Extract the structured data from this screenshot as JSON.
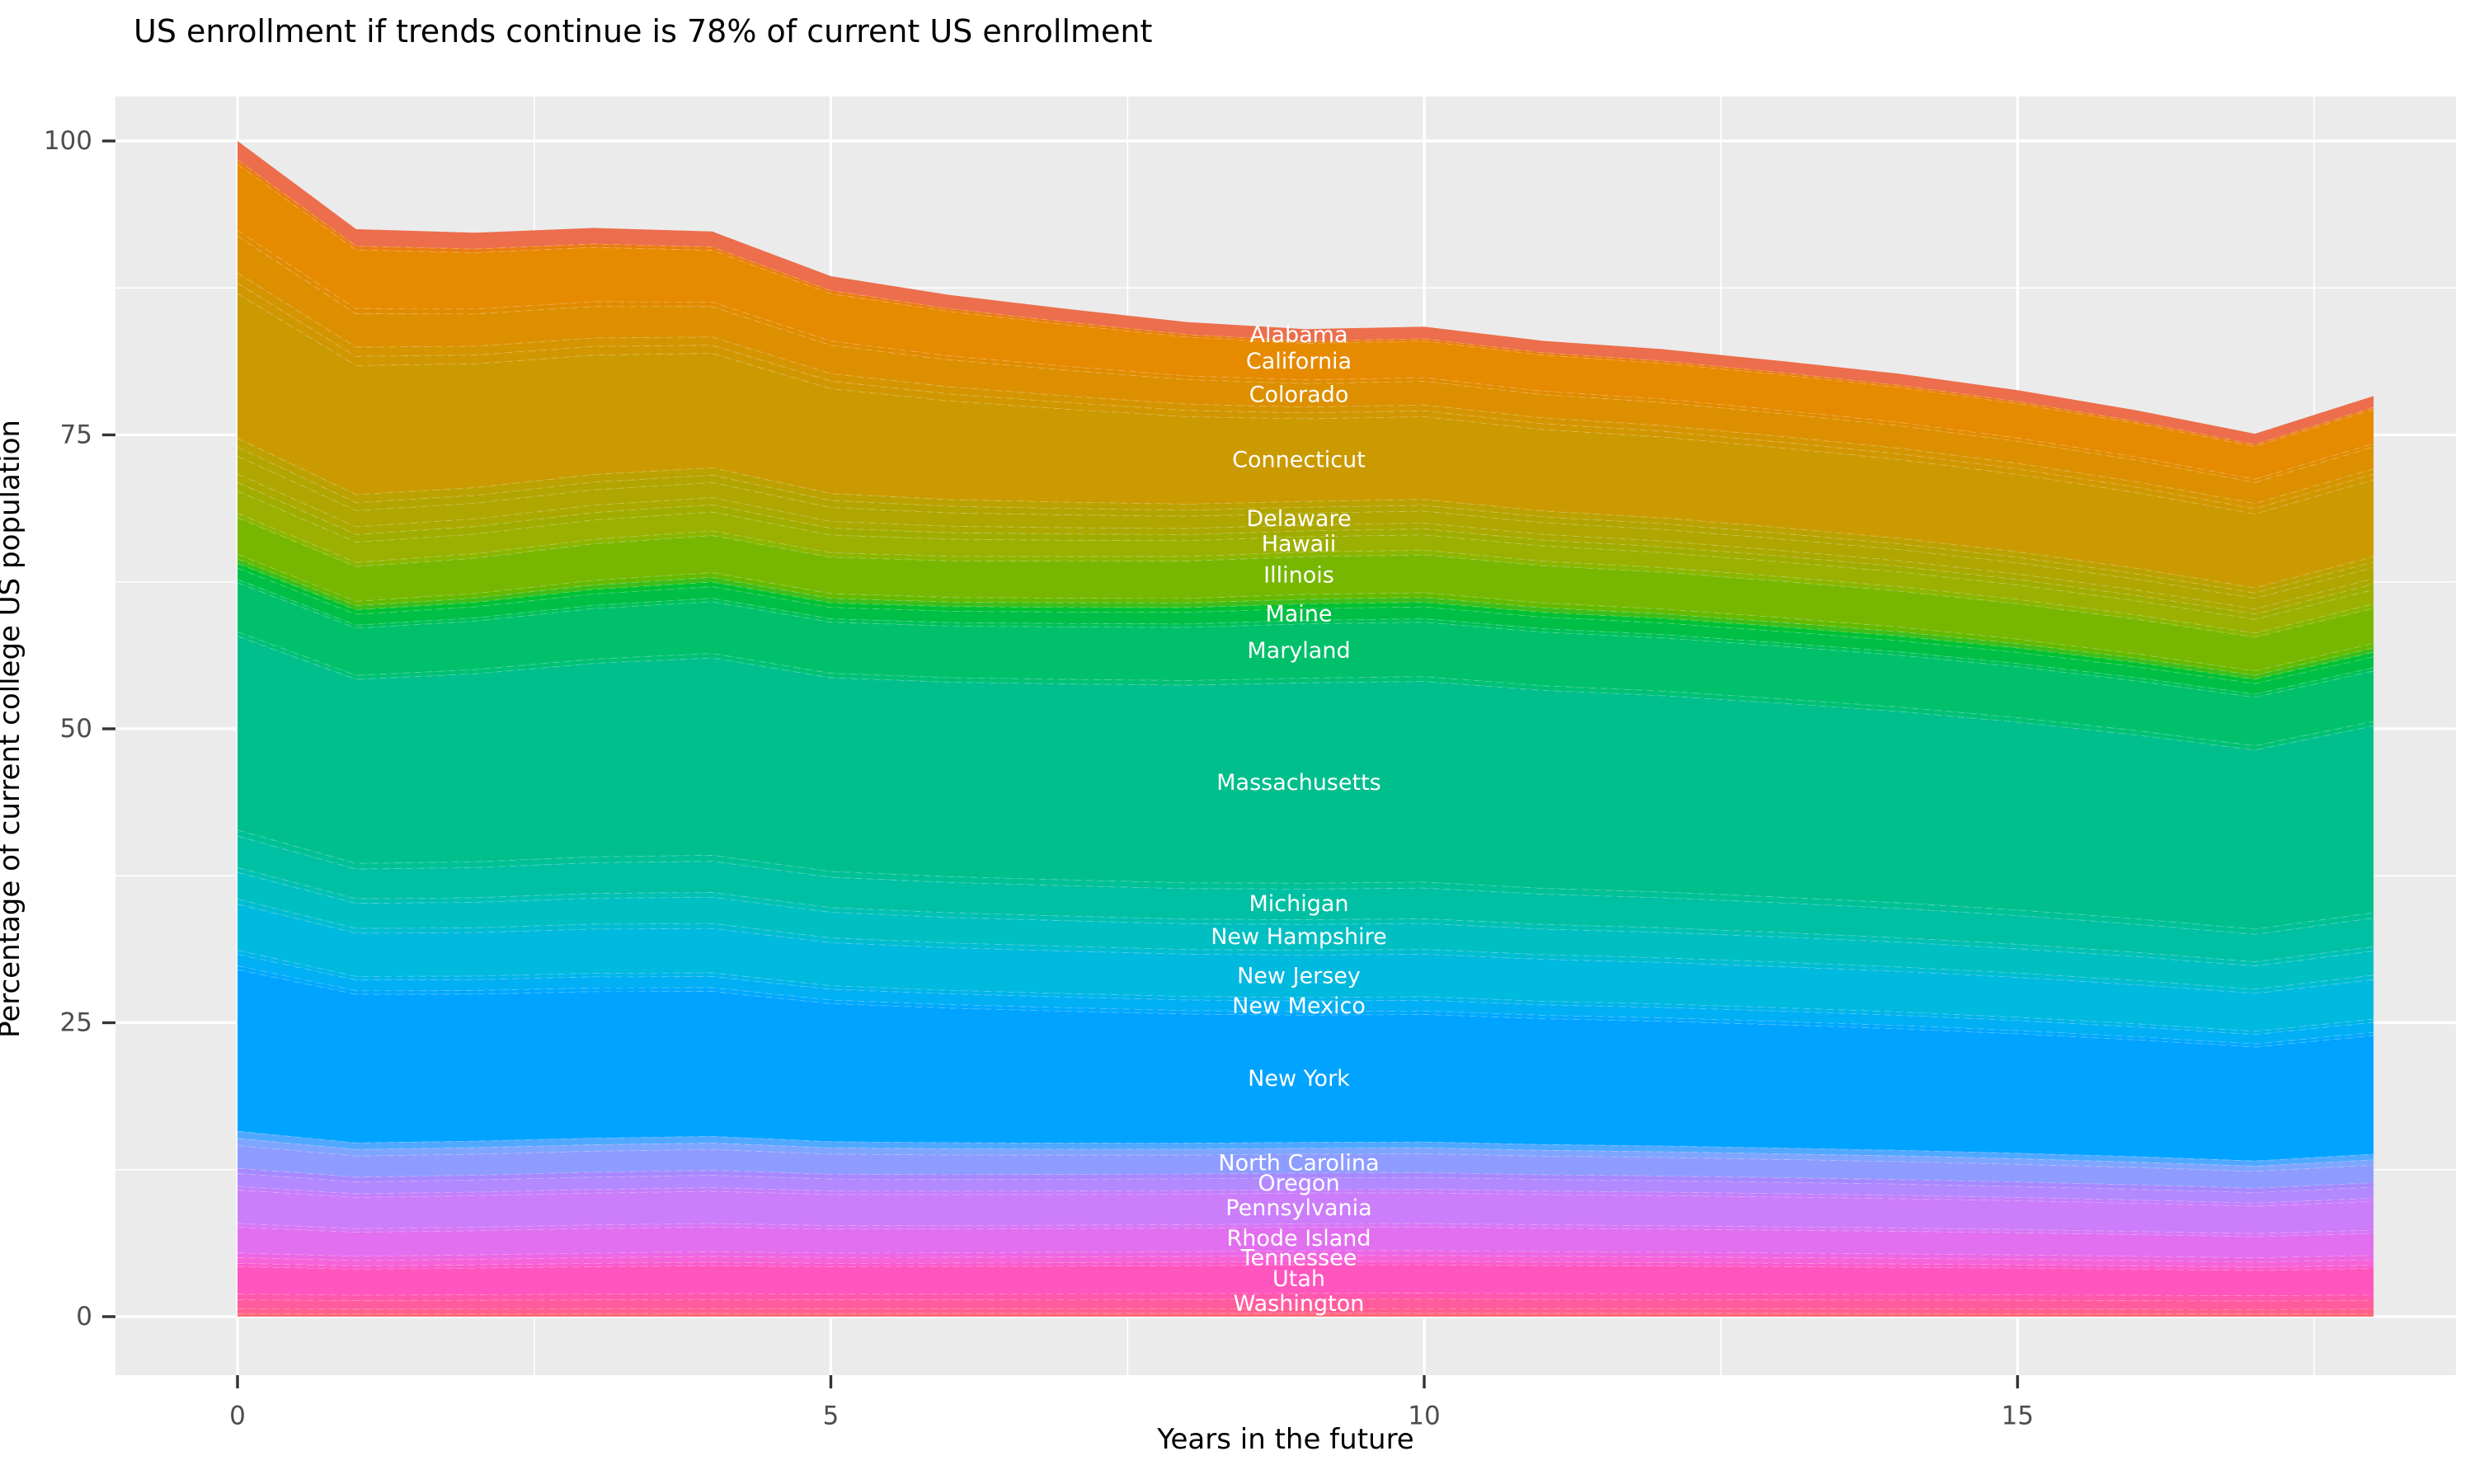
{
  "title": "US enrollment if trends continue is 78% of current US enrollment",
  "x_axis": {
    "label": "Years in the future",
    "ticks": [
      0,
      5,
      10,
      15
    ]
  },
  "y_axis": {
    "label": "Percentage of current college US population",
    "ticks": [
      0,
      25,
      50,
      75,
      100
    ]
  },
  "colors": {
    "panel_bg": "#EBEBEB",
    "gridline": "#FFFFFF",
    "axis_text": "#4D4D4D",
    "tick_mark": "#333333",
    "title_text": "#000000",
    "band_label_text": "#FFFFFF"
  },
  "chart_data": {
    "type": "area",
    "stacked": true,
    "title": "US enrollment if trends continue is 78% of current US enrollment",
    "xlabel": "Years in the future",
    "ylabel": "Percentage of current college US population",
    "xlim": [
      0,
      18
    ],
    "ylim": [
      0,
      100
    ],
    "grid": true,
    "x": [
      0,
      1,
      2,
      3,
      4,
      5,
      6,
      7,
      8,
      9,
      10,
      11,
      12,
      13,
      14,
      15,
      16,
      17,
      18
    ],
    "total_percent": [
      100,
      92.5,
      92.2,
      92.6,
      92.3,
      88.5,
      86.9,
      85.7,
      84.6,
      84.0,
      84.2,
      83.0,
      82.3,
      81.3,
      80.2,
      78.8,
      77.1,
      75.1,
      78.3
    ],
    "end_value_percent": 78,
    "label_anchor_year": 9,
    "visible_state_labels": [
      "Alabama",
      "California",
      "Colorado",
      "Connecticut",
      "Delaware",
      "Hawaii",
      "Illinois",
      "Maine",
      "Maryland",
      "Massachusetts",
      "Michigan",
      "New Hampshire",
      "New Jersey",
      "New Mexico",
      "New York",
      "North Carolina",
      "Oregon",
      "Pennsylvania",
      "Rhode Island",
      "Tennessee",
      "Utah",
      "Washington"
    ],
    "bands": [
      {
        "color": "#FF6A78",
        "share": 0.3,
        "start_factor": 0.8
      },
      {
        "color": "#FF5F8F",
        "share": 0.4,
        "start_factor": 0.8
      },
      {
        "label": "Washington",
        "color": "#FF5C9E",
        "share": 0.8,
        "start_factor": 0.8
      },
      {
        "color": "#FF58AD",
        "share": 0.5,
        "start_factor": 0.8
      },
      {
        "label": "Utah",
        "color": "#FF55BE",
        "share": 2.4,
        "start_factor": 0.8
      },
      {
        "color": "#FA5CCE",
        "share": 0.3,
        "start_factor": 0.8
      },
      {
        "label": "Tennessee",
        "color": "#F564D9",
        "share": 0.5,
        "start_factor": 0.8
      },
      {
        "color": "#EC67E5",
        "share": 0.4,
        "start_factor": 0.8
      },
      {
        "label": "Rhode Island",
        "color": "#E16FEF",
        "share": 2.0,
        "start_factor": 0.9
      },
      {
        "color": "#D778F7",
        "share": 0.3,
        "start_factor": 0.9
      },
      {
        "label": "Pennsylvania",
        "color": "#CC7DFA",
        "share": 2.6,
        "start_factor": 0.9
      },
      {
        "color": "#C480FC",
        "share": 0.3,
        "start_factor": 0.9
      },
      {
        "label": "Oregon",
        "color": "#B389FF",
        "share": 1.0,
        "start_factor": 0.9
      },
      {
        "color": "#A689FF",
        "share": 0.4,
        "start_factor": 0.9
      },
      {
        "label": "North Carolina",
        "color": "#8F9CFF",
        "share": 1.6,
        "start_factor": 1.0
      },
      {
        "color": "#7FA6FF",
        "share": 0.5,
        "start_factor": 1.0
      },
      {
        "color": "#50A9FF",
        "share": 0.5,
        "start_factor": 1.0
      },
      {
        "label": "New York",
        "color": "#00A3FF",
        "share": 10.8,
        "start_factor": 1.05
      },
      {
        "color": "#00A9FD",
        "share": 0.3,
        "start_factor": 0.9
      },
      {
        "label": "New Mexico",
        "color": "#00AFF4",
        "share": 0.9,
        "start_factor": 0.9
      },
      {
        "color": "#00B5E8",
        "share": 0.3,
        "start_factor": 0.9
      },
      {
        "label": "New Jersey",
        "color": "#00B9DF",
        "share": 3.6,
        "start_factor": 0.9
      },
      {
        "color": "#00BDD0",
        "share": 0.4,
        "start_factor": 0.9
      },
      {
        "label": "New Hampshire",
        "color": "#00BFC3",
        "share": 2.2,
        "start_factor": 0.85
      },
      {
        "color": "#00C1B2",
        "share": 0.4,
        "start_factor": 0.85
      },
      {
        "label": "Michigan",
        "color": "#00C0A4",
        "share": 2.6,
        "start_factor": 0.85
      },
      {
        "color": "#00C195",
        "share": 0.5,
        "start_factor": 0.85
      },
      {
        "label": "Massachusetts",
        "color": "#00BF8C",
        "share": 17.0,
        "start_factor": 0.8
      },
      {
        "color": "#00C175",
        "share": 0.4,
        "start_factor": 0.75
      },
      {
        "label": "Maryland",
        "color": "#00C06B",
        "share": 4.6,
        "start_factor": 0.75
      },
      {
        "color": "#00C159",
        "share": 0.3,
        "start_factor": 0.75
      },
      {
        "label": "Maine",
        "color": "#00BF46",
        "share": 1.0,
        "start_factor": 0.8
      },
      {
        "color": "#00C132",
        "share": 0.4,
        "start_factor": 0.8
      },
      {
        "color": "#3FBE19",
        "share": 0.4,
        "start_factor": 0.8
      },
      {
        "color": "#65BA00",
        "share": 0.4,
        "start_factor": 0.8
      },
      {
        "label": "Illinois",
        "color": "#78B701",
        "share": 3.2,
        "start_factor": 0.8
      },
      {
        "color": "#8CB600",
        "share": 0.4,
        "start_factor": 0.8
      },
      {
        "label": "Hawaii",
        "color": "#9BB000",
        "share": 1.3,
        "start_factor": 1.2
      },
      {
        "color": "#A0AD00",
        "share": 0.5,
        "start_factor": 1.2
      },
      {
        "color": "#ABA900",
        "share": 0.5,
        "start_factor": 1.2
      },
      {
        "label": "Delaware",
        "color": "#AFA600",
        "share": 1.0,
        "start_factor": 1.25
      },
      {
        "color": "#B3A500",
        "share": 0.5,
        "start_factor": 1.25
      },
      {
        "color": "#BCA200",
        "share": 0.5,
        "start_factor": 1.25
      },
      {
        "label": "Connecticut",
        "color": "#CB9A00",
        "share": 7.0,
        "start_factor": 1.45
      },
      {
        "color": "#D19700",
        "share": 0.5,
        "start_factor": 1.45
      },
      {
        "color": "#D59500",
        "share": 0.5,
        "start_factor": 1.45
      },
      {
        "label": "Colorado",
        "color": "#DC9000",
        "share": 2.0,
        "start_factor": 1.3
      },
      {
        "color": "#E18C00",
        "share": 0.3,
        "start_factor": 1.3
      },
      {
        "label": "California",
        "color": "#E68A00",
        "share": 3.1,
        "start_factor": 1.5
      },
      {
        "color": "#EA7E12",
        "share": 0.2,
        "start_factor": 1.5
      },
      {
        "label": "Alabama",
        "color": "#EC6E4C",
        "share": 1.0,
        "start_factor": 1.3
      }
    ]
  }
}
